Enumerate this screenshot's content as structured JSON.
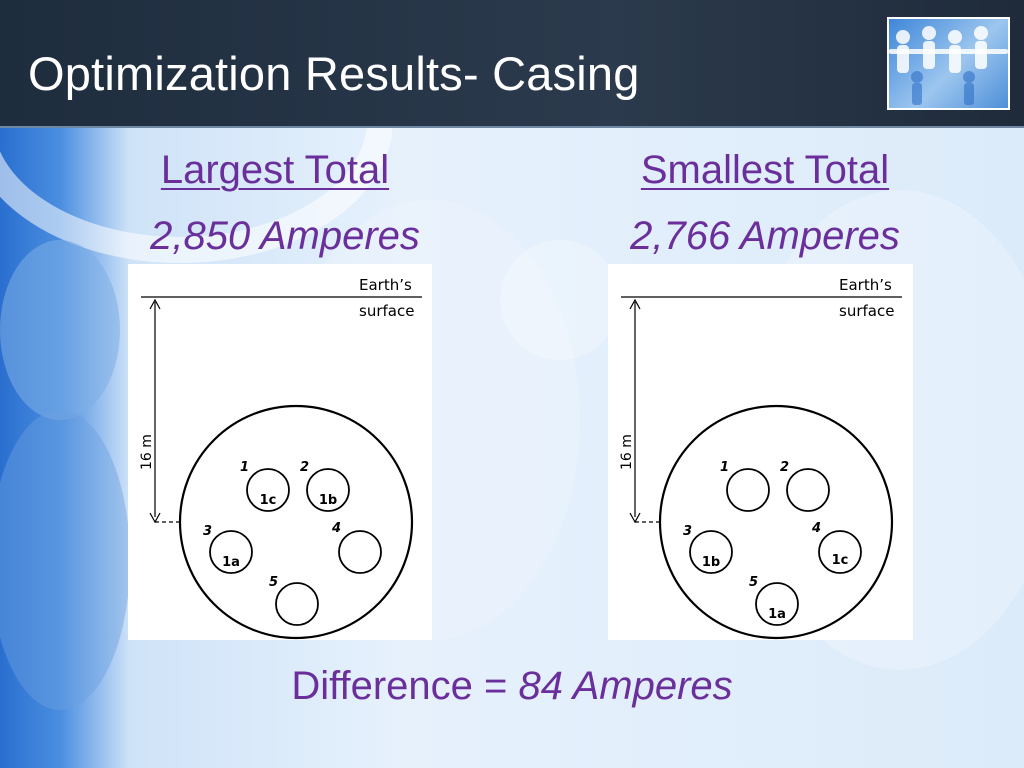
{
  "slide": {
    "title": "Optimization Results- Casing"
  },
  "left": {
    "heading": "Largest Total",
    "value": "2,850 Amperes",
    "diagram": {
      "surface_label_line1": "Earth’s",
      "surface_label_line2": "surface",
      "depth_label": "16 m",
      "slots": [
        {
          "num": "1",
          "cable": "1c"
        },
        {
          "num": "2",
          "cable": "1b"
        },
        {
          "num": "3",
          "cable": "1a"
        },
        {
          "num": "4",
          "cable": ""
        },
        {
          "num": "5",
          "cable": ""
        }
      ]
    }
  },
  "right": {
    "heading": "Smallest Total",
    "value": "2,766 Amperes",
    "diagram": {
      "surface_label_line1": "Earth’s",
      "surface_label_line2": "surface",
      "depth_label": "16 m",
      "slots": [
        {
          "num": "1",
          "cable": ""
        },
        {
          "num": "2",
          "cable": ""
        },
        {
          "num": "3",
          "cable": "1b"
        },
        {
          "num": "4",
          "cable": "1c"
        },
        {
          "num": "5",
          "cable": "1a"
        }
      ]
    }
  },
  "footer": {
    "prefix": "Difference = ",
    "value": "84 Amperes"
  }
}
